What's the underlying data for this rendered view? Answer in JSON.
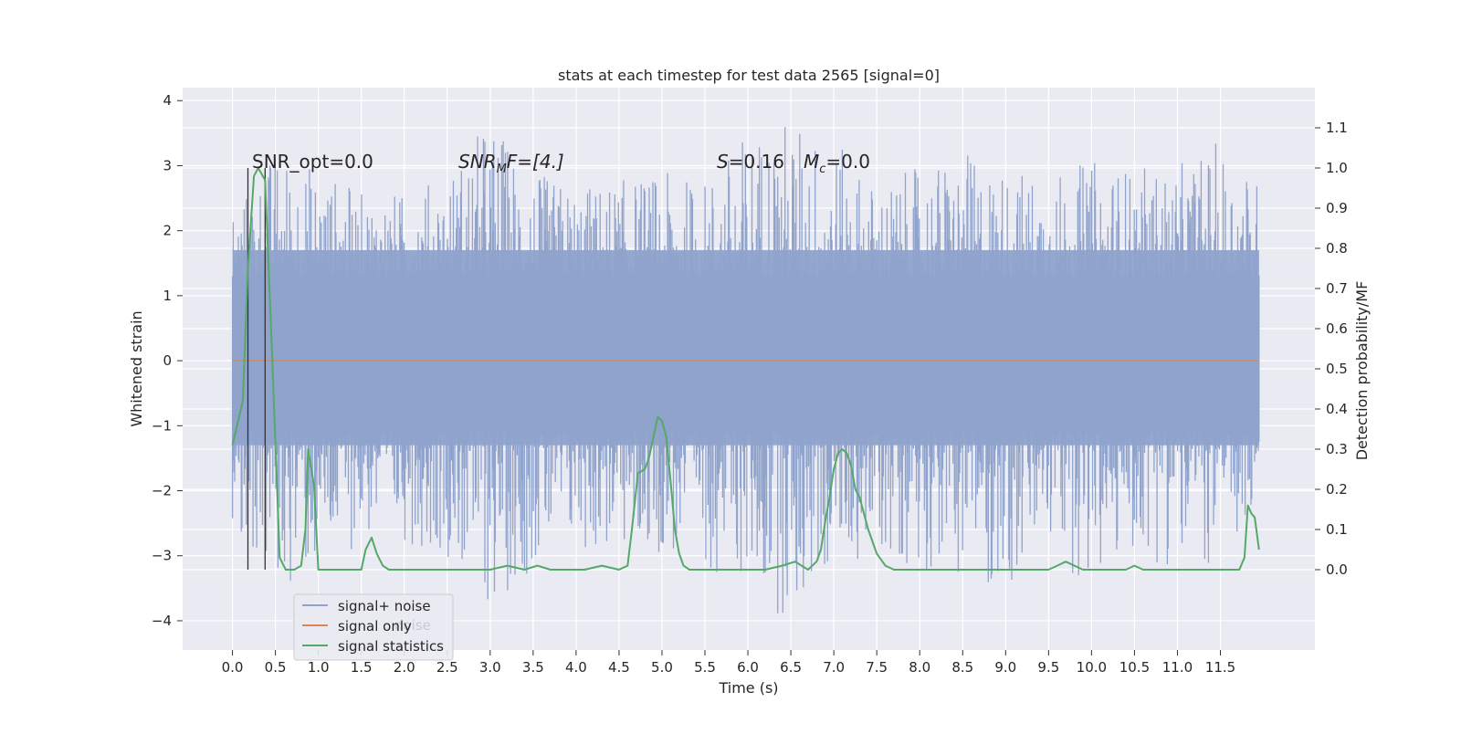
{
  "chart_data": {
    "type": "line",
    "title": "stats at each timestep for test data 2565 [signal=0]",
    "xlabel": "Time (s)",
    "ylabel_left": "Whitened strain",
    "ylabel_right": "Detection probability/MF",
    "xlim": [
      -0.58,
      12.6
    ],
    "ylim_left": [
      -4.45,
      4.2
    ],
    "ylim_right": [
      -0.2,
      1.2
    ],
    "x_ticks": [
      "0.0",
      "0.5",
      "1.0",
      "1.5",
      "2.0",
      "2.5",
      "3.0",
      "3.5",
      "4.0",
      "4.5",
      "5.0",
      "5.5",
      "6.0",
      "6.5",
      "7.0",
      "7.5",
      "8.0",
      "8.5",
      "9.0",
      "9.5",
      "10.0",
      "10.5",
      "11.0",
      "11.5"
    ],
    "y_ticks_left": [
      4,
      3,
      2,
      1,
      0,
      -1,
      -2,
      -3,
      -4
    ],
    "y_ticks_left_labels": [
      "4",
      "3",
      "2",
      "1",
      "0",
      "−1",
      "−2",
      "−3",
      "−4"
    ],
    "y_ticks_right": [
      "1.1",
      "1.0",
      "0.9",
      "0.8",
      "0.7",
      "0.6",
      "0.5",
      "0.4",
      "0.3",
      "0.2",
      "0.1",
      "0.0"
    ],
    "grid": true,
    "legend_position": "lower-left",
    "colors": {
      "noise": "#8fa3cc",
      "signal": "#dd8452",
      "stats": "#55a868",
      "marker": "#333333",
      "background": "#eaeaf2",
      "grid": "#ffffff"
    },
    "annotations": {
      "snr_opt": "SNR_opt=0.0",
      "snr_mf_base": "SNR",
      "snr_mf_sub": "M",
      "snr_mf_rest": "F=[4.]",
      "s_label": "S",
      "s_value": "=0.16",
      "mc_label": "M",
      "mc_sub": "c",
      "mc_value": "=0.0"
    },
    "marker_lines_x": [
      0.18,
      0.38
    ],
    "series": [
      {
        "name": "signal+ noise",
        "description_envelope": {
          "x": [
            0.0,
            0.5,
            1.0,
            1.5,
            2.0,
            2.5,
            3.0,
            3.5,
            4.0,
            4.5,
            5.0,
            5.5,
            6.0,
            6.5,
            7.0,
            7.5,
            8.0,
            8.5,
            9.0,
            9.5,
            10.0,
            10.5,
            11.0,
            11.5,
            11.95
          ],
          "upper": [
            2.3,
            3.3,
            3.0,
            2.6,
            2.6,
            2.9,
            3.8,
            2.9,
            2.7,
            2.8,
            2.9,
            2.8,
            3.6,
            3.8,
            3.4,
            2.7,
            3.0,
            3.2,
            3.0,
            2.9,
            3.1,
            3.0,
            3.0,
            3.4,
            2.8
          ],
          "lower": [
            -2.6,
            -3.6,
            -3.3,
            -2.8,
            -2.8,
            -3.0,
            -3.9,
            -3.2,
            -3.0,
            -3.0,
            -3.0,
            -3.2,
            -3.5,
            -4.1,
            -3.2,
            -3.0,
            -3.2,
            -3.3,
            -3.7,
            -2.9,
            -3.6,
            -3.0,
            -3.2,
            -3.2,
            -2.6
          ]
        }
      },
      {
        "name": "signal only",
        "x": [
          0.0,
          11.95
        ],
        "y": [
          0.0,
          0.0
        ]
      },
      {
        "name": "signal statistics",
        "axis": "right",
        "x": [
          0.0,
          0.12,
          0.18,
          0.25,
          0.3,
          0.38,
          0.45,
          0.55,
          0.62,
          0.72,
          0.8,
          0.85,
          0.88,
          0.95,
          1.0,
          1.1,
          1.3,
          1.5,
          1.55,
          1.62,
          1.68,
          1.75,
          1.82,
          1.9,
          2.0,
          2.2,
          2.5,
          2.8,
          3.0,
          3.2,
          3.4,
          3.55,
          3.7,
          3.9,
          4.1,
          4.3,
          4.5,
          4.6,
          4.65,
          4.72,
          4.8,
          4.85,
          4.9,
          4.95,
          5.0,
          5.05,
          5.1,
          5.15,
          5.2,
          5.25,
          5.32,
          5.4,
          5.6,
          5.8,
          6.0,
          6.2,
          6.4,
          6.55,
          6.7,
          6.8,
          6.85,
          6.9,
          6.95,
          7.0,
          7.05,
          7.1,
          7.15,
          7.2,
          7.25,
          7.3,
          7.4,
          7.5,
          7.6,
          7.7,
          7.8,
          8.0,
          8.5,
          9.0,
          9.5,
          9.6,
          9.7,
          9.8,
          9.9,
          10.0,
          10.2,
          10.4,
          10.5,
          10.6,
          10.8,
          11.0,
          11.5,
          11.72,
          11.78,
          11.82,
          11.86,
          11.9,
          11.95
        ],
        "y": [
          0.31,
          0.42,
          0.75,
          0.98,
          1.0,
          0.97,
          0.6,
          0.03,
          0.0,
          0.0,
          0.01,
          0.1,
          0.3,
          0.21,
          0.0,
          0.0,
          0.0,
          0.0,
          0.05,
          0.08,
          0.04,
          0.01,
          0.0,
          0.0,
          0.0,
          0.0,
          0.0,
          0.0,
          0.0,
          0.01,
          0.0,
          0.01,
          0.0,
          0.0,
          0.0,
          0.01,
          0.0,
          0.01,
          0.1,
          0.24,
          0.25,
          0.28,
          0.33,
          0.38,
          0.37,
          0.33,
          0.22,
          0.1,
          0.04,
          0.01,
          0.0,
          0.0,
          0.0,
          0.0,
          0.0,
          0.0,
          0.01,
          0.02,
          0.0,
          0.02,
          0.05,
          0.12,
          0.18,
          0.25,
          0.29,
          0.3,
          0.29,
          0.26,
          0.2,
          0.18,
          0.1,
          0.04,
          0.01,
          0.0,
          0.0,
          0.0,
          0.0,
          0.0,
          0.0,
          0.01,
          0.02,
          0.01,
          0.0,
          0.0,
          0.0,
          0.0,
          0.01,
          0.0,
          0.0,
          0.0,
          0.0,
          0.0,
          0.03,
          0.16,
          0.14,
          0.13,
          0.05
        ]
      }
    ]
  },
  "legend": {
    "items": [
      "signal+ noise",
      "signal only",
      "signal statistics"
    ],
    "ghost_text": "noise"
  }
}
